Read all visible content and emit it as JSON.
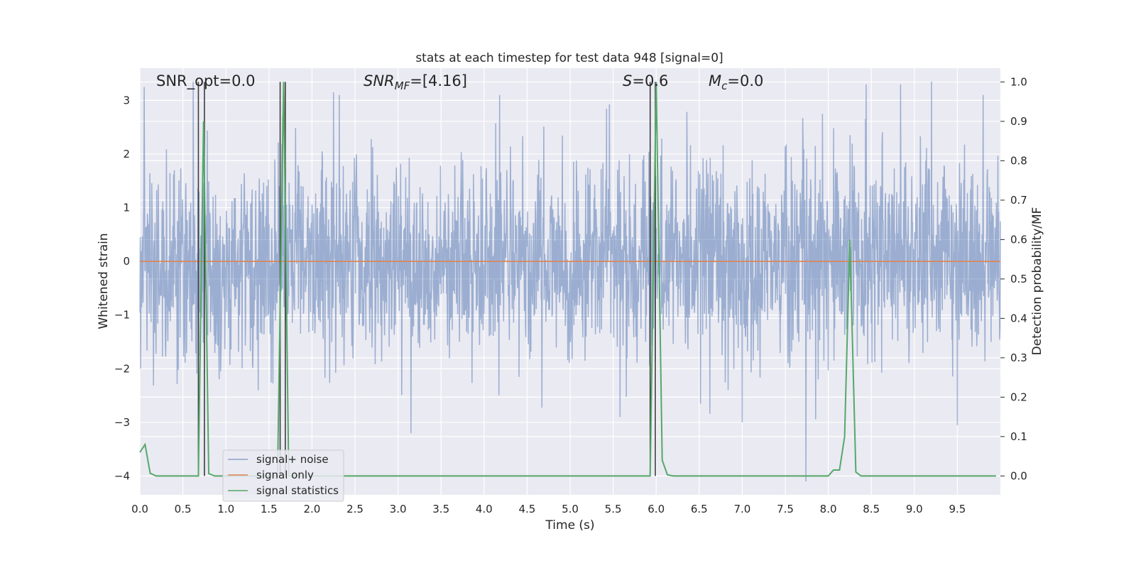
{
  "chart_data": {
    "type": "line",
    "title": "stats at each timestep for test data 948 [signal=0]",
    "xlabel": "Time (s)",
    "ylabel": "Whitened strain",
    "ylabel_right": "Detection probability/MF",
    "xlim": [
      0,
      10
    ],
    "ylim_left": [
      -4.35,
      3.6
    ],
    "ylim_right": [
      -0.048,
      1.035
    ],
    "x_ticks": [
      "0.0",
      "0.5",
      "1.0",
      "1.5",
      "2.0",
      "2.5",
      "3.0",
      "3.5",
      "4.0",
      "4.5",
      "5.0",
      "5.5",
      "6.0",
      "6.5",
      "7.0",
      "7.5",
      "8.0",
      "8.5",
      "9.0",
      "9.5"
    ],
    "x_tick_values": [
      0,
      0.5,
      1,
      1.5,
      2,
      2.5,
      3,
      3.5,
      4,
      4.5,
      5,
      5.5,
      6,
      6.5,
      7,
      7.5,
      8,
      8.5,
      9,
      9.5
    ],
    "y_ticks_left": [
      "3",
      "2",
      "1",
      "0",
      "−1",
      "−2",
      "−3",
      "−4"
    ],
    "y_tick_values_left": [
      3,
      2,
      1,
      0,
      -1,
      -2,
      -3,
      -4
    ],
    "y_ticks_right": [
      "1.0",
      "0.9",
      "0.8",
      "0.7",
      "0.6",
      "0.5",
      "0.4",
      "0.3",
      "0.2",
      "0.1",
      "0.0"
    ],
    "y_tick_values_right": [
      1.0,
      0.9,
      0.8,
      0.7,
      0.6,
      0.5,
      0.4,
      0.3,
      0.2,
      0.1,
      0.0
    ],
    "annotations": [
      {
        "key": "snr_opt",
        "text": "SNR_opt=0.0"
      },
      {
        "key": "snr_mf",
        "text": "SNR_MF=[4.16]"
      },
      {
        "key": "s",
        "text": "S=0.6"
      },
      {
        "key": "mc",
        "text": "M_c=0.0"
      }
    ],
    "annotation_parts": {
      "snr_opt": "SNR_opt=0.0",
      "snr_mf_main": "SNR",
      "snr_mf_sub": "MF",
      "snr_mf_rest": "=[4.16]",
      "s_main": "S",
      "s_rest": "=0.6",
      "mc_main": "M",
      "mc_sub": "c",
      "mc_rest": "=0.0"
    },
    "legend": {
      "placement": "lower-left",
      "entries": [
        {
          "label": "signal+ noise",
          "color": "#4c72b0"
        },
        {
          "label": "signal only",
          "color": "#dd8452"
        },
        {
          "label": "signal statistics",
          "color": "#55a868"
        }
      ]
    },
    "series": [
      {
        "name": "signal+ noise",
        "color": "#4c72b0",
        "opacity": 0.5,
        "description": "whitened strain noise, roughly ±1.3 core amplitude with spikes to about ±3.3",
        "notable_points": [
          {
            "x": 0.05,
            "y": 3.25
          },
          {
            "x": 0.62,
            "y": 3.35
          },
          {
            "x": 2.25,
            "y": 3.15
          },
          {
            "x": 3.15,
            "y": -3.2
          },
          {
            "x": 5.58,
            "y": -2.9
          },
          {
            "x": 7.0,
            "y": -3.0
          },
          {
            "x": 7.74,
            "y": -4.1
          },
          {
            "x": 8.44,
            "y": 3.3
          },
          {
            "x": 8.84,
            "y": 3.3
          },
          {
            "x": 9.2,
            "y": 3.35
          },
          {
            "x": 9.5,
            "y": -3.05
          }
        ]
      },
      {
        "name": "signal only",
        "color": "#dd8452",
        "x": [
          0,
          10
        ],
        "y": [
          0,
          0
        ]
      },
      {
        "name": "signal statistics",
        "color": "#55a868",
        "axis": "right",
        "x": [
          0,
          0.06,
          0.12,
          0.19,
          0.25,
          0.68,
          0.74,
          0.8,
          0.87,
          1.0,
          1.6,
          1.67,
          1.73,
          1.8,
          2.0,
          5.93,
          6.0,
          6.07,
          6.13,
          6.2,
          6.5,
          8.0,
          8.06,
          8.13,
          8.19,
          8.25,
          8.32,
          8.38,
          8.5,
          9.95
        ],
        "y": [
          0.06,
          0.08,
          0.007,
          0.0,
          0.0,
          0.0,
          0.9,
          0.006,
          0.0,
          0.0,
          0.0,
          1.0,
          0.0,
          0.0,
          0.0,
          0.0,
          1.0,
          0.04,
          0.003,
          0.0,
          0.0,
          0.0,
          0.015,
          0.015,
          0.1,
          0.6,
          0.01,
          0.0,
          0.0,
          0.0
        ]
      }
    ],
    "vertical_markers": {
      "color": "#3d3d3d",
      "x": [
        0.68,
        0.75,
        1.63,
        1.69,
        5.93,
        5.99
      ]
    }
  }
}
